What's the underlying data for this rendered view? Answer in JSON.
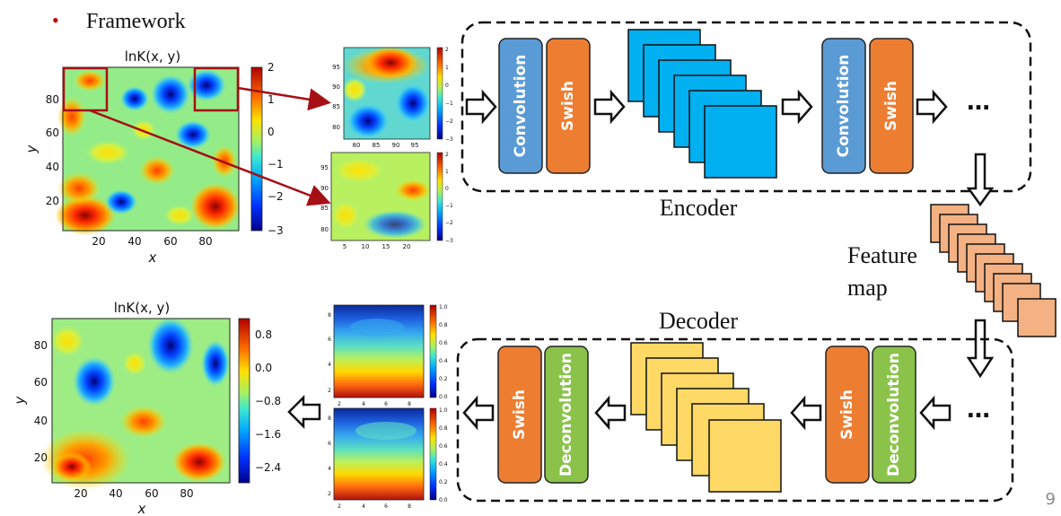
{
  "slide": {
    "bullet": "•",
    "heading": "Framework",
    "page_number": "9"
  },
  "colors": {
    "convolution": "#5b9bd5",
    "swish": "#ed7d31",
    "deconvolution": "#8bc34a",
    "encoder_map": "#00b0f0",
    "feature_map": "#f4b183",
    "decoder_map": "#ffd966",
    "arrow_red": "#a50f15"
  },
  "encoder": {
    "label": "Encoder",
    "block1_conv": "Convolution",
    "block1_swish": "Swish",
    "block2_conv": "Convolution",
    "block2_swish": "Swish",
    "ellipsis": "…"
  },
  "feature_map": {
    "label_line1": "Feature",
    "label_line2": "map"
  },
  "decoder": {
    "label": "Decoder",
    "block1_swish": "Swish",
    "block1_deconv": "Deconvolution",
    "block2_swish": "Swish",
    "block2_deconv": "Deconvolution",
    "ellipsis": "…"
  },
  "input_map": {
    "title": "lnK(x, y)",
    "xlabel": "x",
    "ylabel": "y",
    "xticks": [
      "20",
      "40",
      "60",
      "80"
    ],
    "yticks": [
      "20",
      "40",
      "60",
      "80"
    ],
    "cbar_ticks": [
      "2",
      "1",
      "0",
      "−1",
      "−2",
      "−3"
    ]
  },
  "crop_top": {
    "xticks": [
      "80",
      "85",
      "90",
      "95"
    ],
    "yticks": [
      "95",
      "90",
      "85",
      "80"
    ],
    "cbar_ticks": [
      "2",
      "1",
      "0",
      "−1",
      "−2",
      "−3"
    ]
  },
  "crop_bottom": {
    "xticks": [
      "5",
      "10",
      "15",
      "20"
    ],
    "yticks": [
      "95",
      "90",
      "85",
      "80"
    ],
    "cbar_ticks": [
      "2",
      "1",
      "0",
      "−1",
      "−2",
      "−3"
    ]
  },
  "output_map": {
    "title": "lnK(x, y)",
    "xlabel": "x",
    "ylabel": "y",
    "xticks": [
      "20",
      "40",
      "60",
      "80"
    ],
    "yticks": [
      "20",
      "40",
      "60",
      "80"
    ],
    "cbar_ticks": [
      "0.8",
      "0.0",
      "−0.8",
      "−1.6",
      "−2.4"
    ]
  },
  "out_top": {
    "xticks": [
      "2",
      "4",
      "6",
      "8"
    ],
    "yticks": [
      "8",
      "6",
      "4",
      "2"
    ],
    "cbar_ticks": [
      "1.0",
      "0.8",
      "0.6",
      "0.4",
      "0.2",
      "0.0"
    ]
  },
  "out_bottom": {
    "xticks": [
      "2",
      "4",
      "6",
      "8"
    ],
    "yticks": [
      "8",
      "6",
      "4",
      "2"
    ],
    "cbar_ticks": [
      "1.0",
      "0.8",
      "0.6",
      "0.4",
      "0.2",
      "0.0"
    ]
  }
}
